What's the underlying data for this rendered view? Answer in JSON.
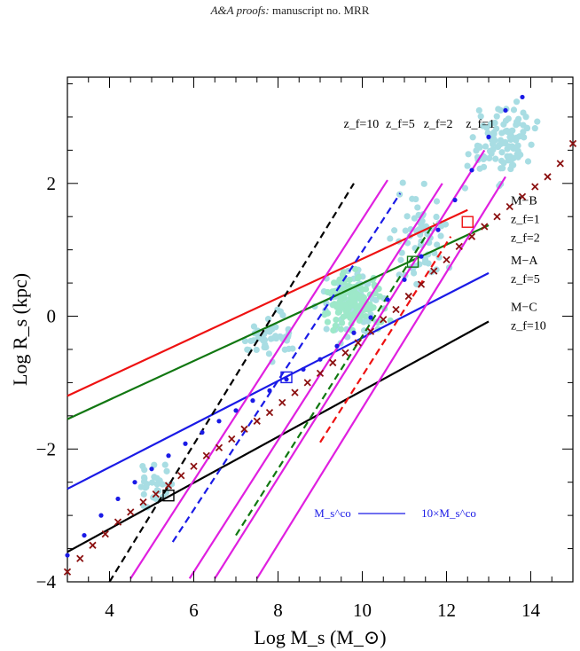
{
  "header": {
    "journal": "A&A proofs:",
    "manuscript": "manuscript no. MRR"
  },
  "chart_data": {
    "type": "scatter",
    "title": "",
    "xlabel": "Log M_s (M_⊙)",
    "ylabel": "Log R_s (kpc)",
    "xlim": [
      3,
      15
    ],
    "ylim": [
      -4,
      3.6
    ],
    "x_ticks": [
      4,
      6,
      8,
      10,
      12,
      14
    ],
    "y_ticks": [
      -4,
      -2,
      0,
      2
    ],
    "x_tick_labels": [
      "4",
      "6",
      "8",
      "10",
      "12",
      "14"
    ],
    "y_tick_labels": [
      "−4",
      "−2",
      "0",
      "2"
    ],
    "top_labels": [
      {
        "text": "z_f=10",
        "x": 10.4
      },
      {
        "text": "z_f=5",
        "x": 11.4
      },
      {
        "text": "z_f=2",
        "x": 12.3
      },
      {
        "text": "z_f=1",
        "x": 13.3
      }
    ],
    "side_labels": [
      {
        "lines": [
          "M−B",
          "z_f=1",
          "z_f=2"
        ],
        "y": 1.55
      },
      {
        "lines": [
          "M−A",
          "z_f=5"
        ],
        "y": 0.65
      },
      {
        "lines": [
          "M−C",
          "z_f=10"
        ],
        "y": -0.05
      }
    ],
    "legend": {
      "left": "M_s^co",
      "right": "10×M_s^co",
      "color": "#1a1ae6"
    },
    "series": [
      {
        "kind": "solid",
        "color": "#ee1111",
        "x": [
          3,
          12.5
        ],
        "y": [
          -1.2,
          1.6
        ]
      },
      {
        "kind": "solid",
        "color": "#117711",
        "x": [
          3,
          13
        ],
        "y": [
          -1.55,
          1.37
        ]
      },
      {
        "kind": "solid",
        "color": "#1a1ae6",
        "x": [
          3,
          13
        ],
        "y": [
          -2.6,
          0.65
        ]
      },
      {
        "kind": "solid",
        "color": "#000000",
        "x": [
          3,
          13
        ],
        "y": [
          -3.55,
          -0.08
        ]
      },
      {
        "kind": "dashed",
        "color": "#000000",
        "x": [
          4,
          9.8
        ],
        "y": [
          -4,
          2.0
        ]
      },
      {
        "kind": "dashed",
        "color": "#1a1ae6",
        "x": [
          5.5,
          10.9
        ],
        "y": [
          -3.4,
          1.85
        ]
      },
      {
        "kind": "dashed",
        "color": "#117711",
        "x": [
          7,
          11.7
        ],
        "y": [
          -3.3,
          1.4
        ]
      },
      {
        "kind": "dashed",
        "color": "#ee1111",
        "x": [
          9,
          12.1
        ],
        "y": [
          -1.9,
          1.2
        ]
      },
      {
        "kind": "solid",
        "color": "#e020e0",
        "x": [
          4.5,
          10.6
        ],
        "y": [
          -3.95,
          2.05
        ]
      },
      {
        "kind": "solid",
        "color": "#e020e0",
        "x": [
          5.9,
          11.9
        ],
        "y": [
          -3.95,
          2.0
        ]
      },
      {
        "kind": "solid",
        "color": "#e020e0",
        "x": [
          6.5,
          12.9
        ],
        "y": [
          -3.95,
          2.5
        ]
      },
      {
        "kind": "solid",
        "color": "#e020e0",
        "x": [
          7.5,
          13.4
        ],
        "y": [
          -3.95,
          2.1
        ]
      }
    ],
    "blue_dots": {
      "color": "#1a1ae6",
      "x": [
        3.0,
        3.4,
        3.8,
        4.2,
        4.6,
        5.0,
        5.4,
        5.8,
        6.2,
        6.6,
        7.0,
        7.4,
        7.8,
        8.2,
        8.6,
        9.0,
        9.4,
        9.8,
        10.2,
        10.6,
        11.0,
        11.4,
        11.8,
        12.2,
        12.6,
        13.0,
        13.4,
        13.8
      ],
      "y": [
        -3.6,
        -3.3,
        -3.0,
        -2.75,
        -2.5,
        -2.3,
        -2.1,
        -1.92,
        -1.75,
        -1.58,
        -1.42,
        -1.27,
        -1.12,
        -0.95,
        -0.8,
        -0.65,
        -0.45,
        -0.25,
        -0.02,
        0.25,
        0.55,
        0.9,
        1.3,
        1.75,
        2.2,
        2.7,
        3.1,
        3.3
      ]
    },
    "crosses": {
      "color": "#8b1010",
      "x": [
        3.0,
        3.3,
        3.6,
        3.9,
        4.2,
        4.5,
        4.8,
        5.1,
        5.4,
        5.7,
        6.0,
        6.3,
        6.6,
        6.9,
        7.2,
        7.5,
        7.8,
        8.1,
        8.4,
        8.7,
        9.0,
        9.3,
        9.6,
        9.9,
        10.2,
        10.5,
        10.8,
        11.1,
        11.4,
        11.7,
        12.0,
        12.3,
        12.6,
        12.9,
        13.2,
        13.5,
        13.8,
        14.1,
        14.4,
        14.7,
        15.0
      ],
      "y": [
        -3.85,
        -3.65,
        -3.45,
        -3.28,
        -3.1,
        -2.95,
        -2.8,
        -2.68,
        -2.55,
        -2.4,
        -2.26,
        -2.1,
        -1.98,
        -1.85,
        -1.7,
        -1.58,
        -1.45,
        -1.3,
        -1.15,
        -1.0,
        -0.86,
        -0.7,
        -0.55,
        -0.4,
        -0.23,
        -0.05,
        0.1,
        0.3,
        0.48,
        0.68,
        0.85,
        1.05,
        1.2,
        1.35,
        1.5,
        1.65,
        1.8,
        1.95,
        2.1,
        2.3,
        2.6
      ]
    },
    "squares": [
      {
        "x": 5.4,
        "y": -2.7,
        "color": "#000000"
      },
      {
        "x": 8.2,
        "y": -0.92,
        "color": "#1a1ae6"
      },
      {
        "x": 11.2,
        "y": 0.82,
        "color": "#117711"
      },
      {
        "x": 12.5,
        "y": 1.42,
        "color": "#ee1111"
      }
    ],
    "clouds": [
      {
        "color": "#a8dde3",
        "cx": 13.3,
        "cy": 2.6,
        "sx": 0.6,
        "sy": 0.45,
        "n": 110
      },
      {
        "color": "#a8dde3",
        "cx": 11.4,
        "cy": 1.2,
        "sx": 0.5,
        "sy": 0.6,
        "n": 60
      },
      {
        "color": "#a8dde3",
        "cx": 9.7,
        "cy": 0.2,
        "sx": 0.6,
        "sy": 0.45,
        "n": 70
      },
      {
        "color": "#a8dde3",
        "cx": 7.8,
        "cy": -0.35,
        "sx": 0.55,
        "sy": 0.3,
        "n": 45
      },
      {
        "color": "#a8dde3",
        "cx": 5.0,
        "cy": -2.55,
        "sx": 0.35,
        "sy": 0.3,
        "n": 30
      },
      {
        "color": "#9de8c9",
        "cx": 9.8,
        "cy": 0.2,
        "sx": 0.55,
        "sy": 0.35,
        "n": 130
      }
    ]
  }
}
